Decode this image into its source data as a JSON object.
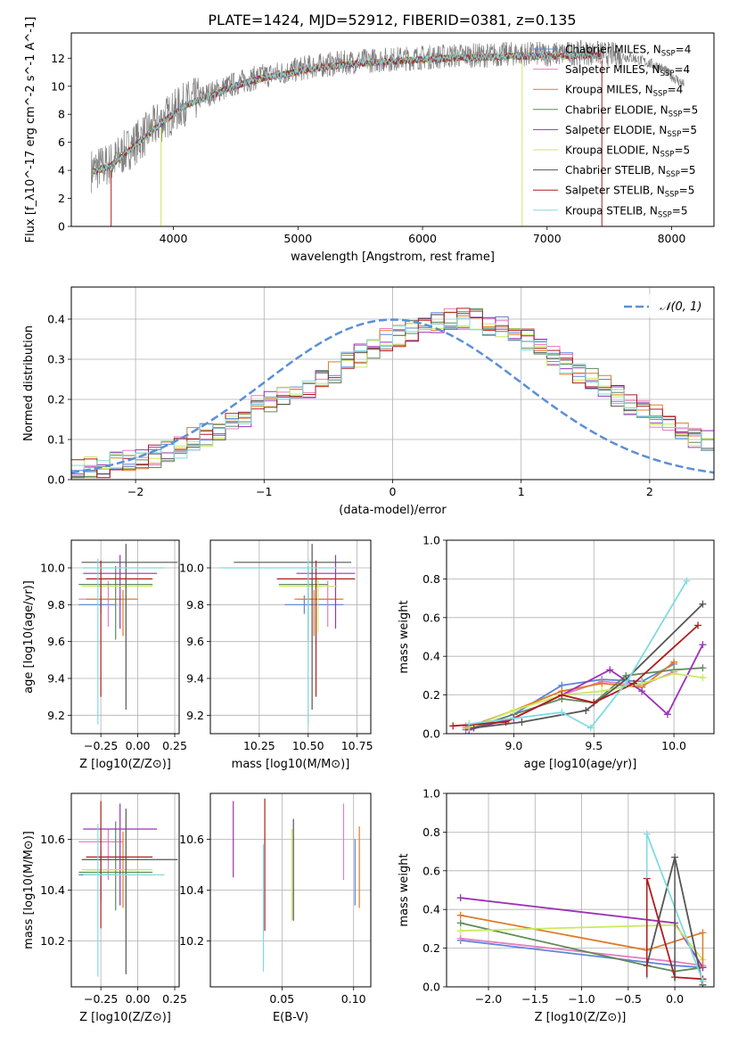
{
  "figure": {
    "title": "PLATE=1424, MJD=52912, FIBERID=0381, z=0.135"
  },
  "colors": {
    "Chabrier MILES": "#5b86d8",
    "Salpeter MILES": "#e57fc0",
    "Kroupa MILES": "#e07a2a",
    "Chabrier ELODIE": "#5f8a5a",
    "Salpeter ELODIE": "#9a33b6",
    "Kroupa ELODIE": "#c9ea5e",
    "Chabrier STELIB": "#555555",
    "Salpeter STELIB": "#b01c1c",
    "Kroupa STELIB": "#7fdbe0",
    "data": "#808080",
    "normal": "#5b8fd6"
  },
  "chart_data": [
    {
      "id": "spectrum",
      "type": "line",
      "title": "PLATE=1424, MJD=52912, FIBERID=0381, z=0.135",
      "xlabel": "wavelength [Angstrom, rest frame]",
      "ylabel": "Flux [f_λ10^-17 erg cm^-2 s^-1 A^-1]",
      "xlim": [
        3180,
        8340
      ],
      "ylim": [
        0,
        13.8
      ],
      "xticks": [
        4000,
        5000,
        6000,
        7000,
        8000
      ],
      "yticks": [
        0,
        2,
        4,
        6,
        8,
        10,
        12
      ],
      "data_x": [
        3340,
        3500,
        3700,
        3900,
        4100,
        4300,
        4500,
        4700,
        4900,
        5100,
        5300,
        5500,
        5700,
        5900,
        6100,
        6300,
        6500,
        6700,
        6900,
        7100,
        7300,
        7500,
        7700,
        7900,
        8100
      ],
      "data_y": [
        4.0,
        4.5,
        6.0,
        7.5,
        8.8,
        9.5,
        10.2,
        10.7,
        11.0,
        11.4,
        11.6,
        11.8,
        11.9,
        12.0,
        12.1,
        12.2,
        12.2,
        12.3,
        12.3,
        12.3,
        12.4,
        12.3,
        12.0,
        11.4,
        10.1
      ],
      "legend": [
        {
          "label": "Chabrier MILES",
          "ssp": "4"
        },
        {
          "label": "Salpeter MILES",
          "ssp": "4"
        },
        {
          "label": "Kroupa MILES",
          "ssp": "4"
        },
        {
          "label": "Chabrier ELODIE",
          "ssp": "5"
        },
        {
          "label": "Salpeter ELODIE",
          "ssp": "5"
        },
        {
          "label": "Kroupa ELODIE",
          "ssp": "5"
        },
        {
          "label": "Chabrier STELIB",
          "ssp": "5"
        },
        {
          "label": "Salpeter STELIB",
          "ssp": "5"
        },
        {
          "label": "Kroupa STELIB",
          "ssp": "5"
        }
      ],
      "legend_position": "upper right"
    },
    {
      "id": "residuals",
      "type": "step",
      "xlabel": "(data-model)/error",
      "ylabel": "Normed distribution",
      "xlim": [
        -2.5,
        2.5
      ],
      "ylim": [
        0,
        0.48
      ],
      "xticks": [
        -2,
        -1,
        0,
        1,
        2
      ],
      "yticks": [
        0.0,
        0.1,
        0.2,
        0.3,
        0.4
      ],
      "grid": true,
      "bin_width": 0.1,
      "hist_envelope": [
        0.02,
        0.03,
        0.03,
        0.04,
        0.05,
        0.05,
        0.06,
        0.07,
        0.08,
        0.1,
        0.11,
        0.12,
        0.14,
        0.16,
        0.18,
        0.19,
        0.21,
        0.22,
        0.23,
        0.25,
        0.27,
        0.29,
        0.31,
        0.33,
        0.35,
        0.36,
        0.37,
        0.38,
        0.39,
        0.4,
        0.4,
        0.4,
        0.39,
        0.38,
        0.37,
        0.35,
        0.33,
        0.31,
        0.29,
        0.27,
        0.25,
        0.23,
        0.21,
        0.19,
        0.17,
        0.16,
        0.14,
        0.12,
        0.11,
        0.1
      ],
      "normal_label": "𝒩(0, 1)",
      "legend_position": "upper right"
    },
    {
      "id": "age-Z",
      "type": "errorbar",
      "xlabel": "Z [log10(Z/Z⊙)]",
      "ylabel": "age [log10(age/yr)]",
      "xlim": [
        -0.45,
        0.28
      ],
      "ylim": [
        9.1,
        10.15
      ],
      "xticks": [
        -0.25,
        0.0,
        0.25
      ],
      "yticks": [
        9.2,
        9.4,
        9.6,
        9.8,
        10.0
      ],
      "points": [
        {
          "c": "Chabrier MILES",
          "x": -0.25,
          "xe": [
            0.15,
            0.1
          ],
          "y": 9.8,
          "ye": [
            0.05,
            0.05
          ]
        },
        {
          "c": "Salpeter MILES",
          "x": -0.2,
          "xe": [
            0.2,
            0.1
          ],
          "y": 9.83,
          "ye": [
            0.15,
            0.1
          ]
        },
        {
          "c": "Kroupa MILES",
          "x": -0.1,
          "xe": [
            0.25,
            0.1
          ],
          "y": 9.83,
          "ye": [
            0.2,
            0.05
          ]
        },
        {
          "c": "Chabrier ELODIE",
          "x": -0.15,
          "xe": [
            0.25,
            0.25
          ],
          "y": 9.91,
          "ye": [
            0.3,
            0.1
          ]
        },
        {
          "c": "Salpeter ELODIE",
          "x": -0.12,
          "xe": [
            0.25,
            0.25
          ],
          "y": 9.97,
          "ye": [
            0.3,
            0.1
          ]
        },
        {
          "c": "Kroupa ELODIE",
          "x": -0.08,
          "xe": [
            0.3,
            0.18
          ],
          "y": 9.9,
          "ye": [
            0.25,
            0.05
          ]
        },
        {
          "c": "Chabrier STELIB",
          "x": -0.08,
          "xe": [
            0.3,
            0.35
          ],
          "y": 10.03,
          "ye": [
            0.8,
            0.1
          ]
        },
        {
          "c": "Salpeter STELIB",
          "x": -0.25,
          "xe": [
            0.1,
            0.35
          ],
          "y": 9.94,
          "ye": [
            0.64,
            0.1
          ]
        },
        {
          "c": "Kroupa STELIB",
          "x": -0.27,
          "xe": [
            0.1,
            0.45
          ],
          "y": 10.0,
          "ye": [
            0.85,
            0.05
          ]
        }
      ]
    },
    {
      "id": "age-mass",
      "type": "errorbar",
      "xlabel": "mass [log10(M/M⊙)]",
      "ylabel": "",
      "xlim": [
        10.0,
        10.82
      ],
      "ylim": [
        9.1,
        10.15
      ],
      "xticks": [
        10.25,
        10.5,
        10.75
      ],
      "yticks": [
        9.2,
        9.4,
        9.6,
        9.8,
        10.0
      ],
      "points": [
        {
          "c": "Chabrier MILES",
          "x": 10.48,
          "xe": [
            0.1,
            0.2
          ],
          "y": 9.8,
          "ye": [
            0.05,
            0.05
          ]
        },
        {
          "c": "Salpeter MILES",
          "x": 10.6,
          "xe": [
            0.15,
            0.05
          ],
          "y": 9.83,
          "ye": [
            0.15,
            0.1
          ]
        },
        {
          "c": "Kroupa MILES",
          "x": 10.53,
          "xe": [
            0.1,
            0.15
          ],
          "y": 9.83,
          "ye": [
            0.2,
            0.05
          ]
        },
        {
          "c": "Chabrier ELODIE",
          "x": 10.5,
          "xe": [
            0.15,
            0.1
          ],
          "y": 9.91,
          "ye": [
            0.3,
            0.1
          ]
        },
        {
          "c": "Salpeter ELODIE",
          "x": 10.64,
          "xe": [
            0.2,
            0.1
          ],
          "y": 9.97,
          "ye": [
            0.3,
            0.1
          ]
        },
        {
          "c": "Kroupa ELODIE",
          "x": 10.55,
          "xe": [
            0.2,
            0.1
          ],
          "y": 9.9,
          "ye": [
            0.25,
            0.05
          ]
        },
        {
          "c": "Chabrier STELIB",
          "x": 10.52,
          "xe": [
            0.4,
            0.2
          ],
          "y": 10.03,
          "ye": [
            0.8,
            0.1
          ]
        },
        {
          "c": "Salpeter STELIB",
          "x": 10.54,
          "xe": [
            0.2,
            0.2
          ],
          "y": 9.94,
          "ye": [
            0.64,
            0.1
          ]
        },
        {
          "c": "Kroupa STELIB",
          "x": 10.5,
          "xe": [
            0.45,
            0.15
          ],
          "y": 10.0,
          "ye": [
            0.85,
            0.05
          ]
        }
      ]
    },
    {
      "id": "weights-age",
      "type": "line",
      "xlabel": "age  [log10(age/yr)]",
      "ylabel": "mass weight",
      "xlim": [
        8.58,
        10.25
      ],
      "ylim": [
        0,
        1.0
      ],
      "xticks": [
        9.0,
        9.5,
        10.0
      ],
      "yticks": [
        0.0,
        0.2,
        0.4,
        0.6,
        0.8,
        1.0
      ],
      "series": [
        {
          "c": "Chabrier MILES",
          "x": [
            8.7,
            9.0,
            9.3,
            9.55,
            9.8,
            10.0
          ],
          "y": [
            0.02,
            0.1,
            0.25,
            0.28,
            0.27,
            0.36
          ]
        },
        {
          "c": "Salpeter MILES",
          "x": [
            8.7,
            9.0,
            9.3,
            9.55,
            9.8,
            10.0
          ],
          "y": [
            0.04,
            0.08,
            0.2,
            0.27,
            0.25,
            0.32
          ]
        },
        {
          "c": "Kroupa MILES",
          "x": [
            8.7,
            9.0,
            9.3,
            9.55,
            9.8,
            10.0
          ],
          "y": [
            0.03,
            0.12,
            0.22,
            0.26,
            0.24,
            0.37
          ]
        },
        {
          "c": "Chabrier ELODIE",
          "x": [
            8.72,
            9.0,
            9.3,
            9.5,
            9.7,
            10.0,
            10.18
          ],
          "y": [
            0.02,
            0.1,
            0.18,
            0.16,
            0.3,
            0.33,
            0.34
          ]
        },
        {
          "c": "Salpeter ELODIE",
          "x": [
            8.72,
            9.0,
            9.3,
            9.6,
            9.8,
            9.96,
            10.18
          ],
          "y": [
            0.02,
            0.08,
            0.2,
            0.33,
            0.22,
            0.1,
            0.46
          ]
        },
        {
          "c": "Kroupa ELODIE",
          "x": [
            8.72,
            9.0,
            9.3,
            9.55,
            9.8,
            10.0,
            10.18
          ],
          "y": [
            0.03,
            0.12,
            0.2,
            0.22,
            0.26,
            0.31,
            0.29
          ]
        },
        {
          "c": "Chabrier STELIB",
          "x": [
            8.75,
            9.05,
            9.45,
            9.7,
            10.18
          ],
          "y": [
            0.03,
            0.06,
            0.12,
            0.28,
            0.67
          ]
        },
        {
          "c": "Salpeter STELIB",
          "x": [
            8.62,
            8.95,
            9.3,
            9.5,
            9.75,
            10.15
          ],
          "y": [
            0.04,
            0.06,
            0.2,
            0.16,
            0.26,
            0.56
          ]
        },
        {
          "c": "Kroupa STELIB",
          "x": [
            8.72,
            9.3,
            9.48,
            9.7,
            10.08
          ],
          "y": [
            0.05,
            0.11,
            0.03,
            0.26,
            0.79
          ]
        }
      ]
    },
    {
      "id": "mass-Z",
      "type": "errorbar",
      "xlabel": "Z [log10(Z/Z⊙)]",
      "ylabel": "mass [log10(M/M⊙)]",
      "xlim": [
        -0.45,
        0.28
      ],
      "ylim": [
        10.02,
        10.78
      ],
      "xticks": [
        -0.25,
        0.0,
        0.25
      ],
      "yticks": [
        10.2,
        10.4,
        10.6
      ],
      "points": [
        {
          "c": "Chabrier MILES",
          "x": -0.25,
          "xe": [
            0.15,
            0.1
          ],
          "y": 10.46,
          "ye": [
            0.1,
            0.1
          ]
        },
        {
          "c": "Salpeter MILES",
          "x": -0.2,
          "xe": [
            0.2,
            0.1
          ],
          "y": 10.59,
          "ye": [
            0.15,
            0.05
          ]
        },
        {
          "c": "Kroupa MILES",
          "x": -0.1,
          "xe": [
            0.25,
            0.1
          ],
          "y": 10.48,
          "ye": [
            0.15,
            0.15
          ]
        },
        {
          "c": "Chabrier ELODIE",
          "x": -0.15,
          "xe": [
            0.25,
            0.25
          ],
          "y": 10.47,
          "ye": [
            0.15,
            0.2
          ]
        },
        {
          "c": "Salpeter ELODIE",
          "x": -0.12,
          "xe": [
            0.25,
            0.25
          ],
          "y": 10.64,
          "ye": [
            0.3,
            0.1
          ]
        },
        {
          "c": "Kroupa ELODIE",
          "x": -0.08,
          "xe": [
            0.3,
            0.18
          ],
          "y": 10.48,
          "ye": [
            0.2,
            0.15
          ]
        },
        {
          "c": "Chabrier STELIB",
          "x": -0.08,
          "xe": [
            0.3,
            0.35
          ],
          "y": 10.52,
          "ye": [
            0.45,
            0.2
          ]
        },
        {
          "c": "Salpeter STELIB",
          "x": -0.25,
          "xe": [
            0.1,
            0.35
          ],
          "y": 10.53,
          "ye": [
            0.28,
            0.22
          ]
        },
        {
          "c": "Kroupa STELIB",
          "x": -0.27,
          "xe": [
            0.1,
            0.45
          ],
          "y": 10.46,
          "ye": [
            0.4,
            0.2
          ]
        }
      ]
    },
    {
      "id": "mass-EBV",
      "type": "errorbar",
      "xlabel": "E(B-V)",
      "ylabel": "",
      "xlim": [
        0.0,
        0.112
      ],
      "ylim": [
        10.02,
        10.78
      ],
      "xticks": [
        0.05,
        0.1
      ],
      "yticks": [
        10.2,
        10.4,
        10.6
      ],
      "points": [
        {
          "c": "Salpeter ELODIE",
          "x": 0.016,
          "y": 10.6,
          "ye": [
            0.15,
            0.15
          ]
        },
        {
          "c": "Kroupa STELIB",
          "x": 0.037,
          "y": 10.33,
          "ye": [
            0.25,
            0.25
          ]
        },
        {
          "c": "Salpeter STELIB",
          "x": 0.038,
          "y": 10.5,
          "ye": [
            0.26,
            0.26
          ]
        },
        {
          "c": "Kroupa ELODIE",
          "x": 0.057,
          "y": 10.46,
          "ye": [
            0.18,
            0.18
          ]
        },
        {
          "c": "Chabrier STELIB",
          "x": 0.058,
          "y": 10.48,
          "ye": [
            0.2,
            0.2
          ]
        },
        {
          "c": "Salpeter MILES",
          "x": 0.093,
          "y": 10.59,
          "ye": [
            0.15,
            0.15
          ]
        },
        {
          "c": "Chabrier MILES",
          "x": 0.101,
          "y": 10.47,
          "ye": [
            0.13,
            0.13
          ]
        },
        {
          "c": "Kroupa MILES",
          "x": 0.104,
          "y": 10.49,
          "ye": [
            0.16,
            0.16
          ]
        }
      ]
    },
    {
      "id": "weights-Z",
      "type": "line",
      "xlabel": "Z [log10(Z/Z⊙)]",
      "ylabel": "mass weight",
      "xlim": [
        -2.45,
        0.42
      ],
      "ylim": [
        0,
        1.0
      ],
      "xticks": [
        -2.0,
        -1.5,
        -1.0,
        -0.5,
        0.0
      ],
      "yticks": [
        0.0,
        0.2,
        0.4,
        0.6,
        0.8,
        1.0
      ],
      "series": [
        {
          "c": "Chabrier MILES",
          "x": [
            -2.3,
            0.0,
            0.3
          ],
          "y": [
            0.24,
            0.11,
            0.1
          ]
        },
        {
          "c": "Salpeter MILES",
          "x": [
            -2.3,
            0.0,
            0.3
          ],
          "y": [
            0.25,
            0.13,
            0.11
          ]
        },
        {
          "c": "Kroupa MILES",
          "x": [
            -2.3,
            -0.3,
            0.3
          ],
          "y": [
            0.37,
            0.19,
            0.28
          ]
        },
        {
          "c": "Chabrier ELODIE",
          "x": [
            -2.3,
            -0.3,
            0.0,
            0.3
          ],
          "y": [
            0.33,
            0.11,
            0.08,
            0.1
          ]
        },
        {
          "c": "Salpeter ELODIE",
          "x": [
            -2.3,
            0.0,
            0.3
          ],
          "y": [
            0.46,
            0.33,
            0.1
          ]
        },
        {
          "c": "Kroupa ELODIE",
          "x": [
            -2.3,
            0.0,
            0.3
          ],
          "y": [
            0.29,
            0.32,
            0.14
          ]
        },
        {
          "c": "Chabrier STELIB",
          "x": [
            -0.3,
            0.0,
            0.3
          ],
          "y": [
            0.11,
            0.67,
            0.01
          ]
        },
        {
          "c": "Salpeter STELIB",
          "x": [
            -0.3,
            0.0,
            0.3
          ],
          "y": [
            0.56,
            0.05,
            0.04
          ]
        },
        {
          "c": "Kroupa STELIB",
          "x": [
            -0.3,
            0.3
          ],
          "y": [
            0.79,
            0.03
          ]
        }
      ]
    }
  ]
}
